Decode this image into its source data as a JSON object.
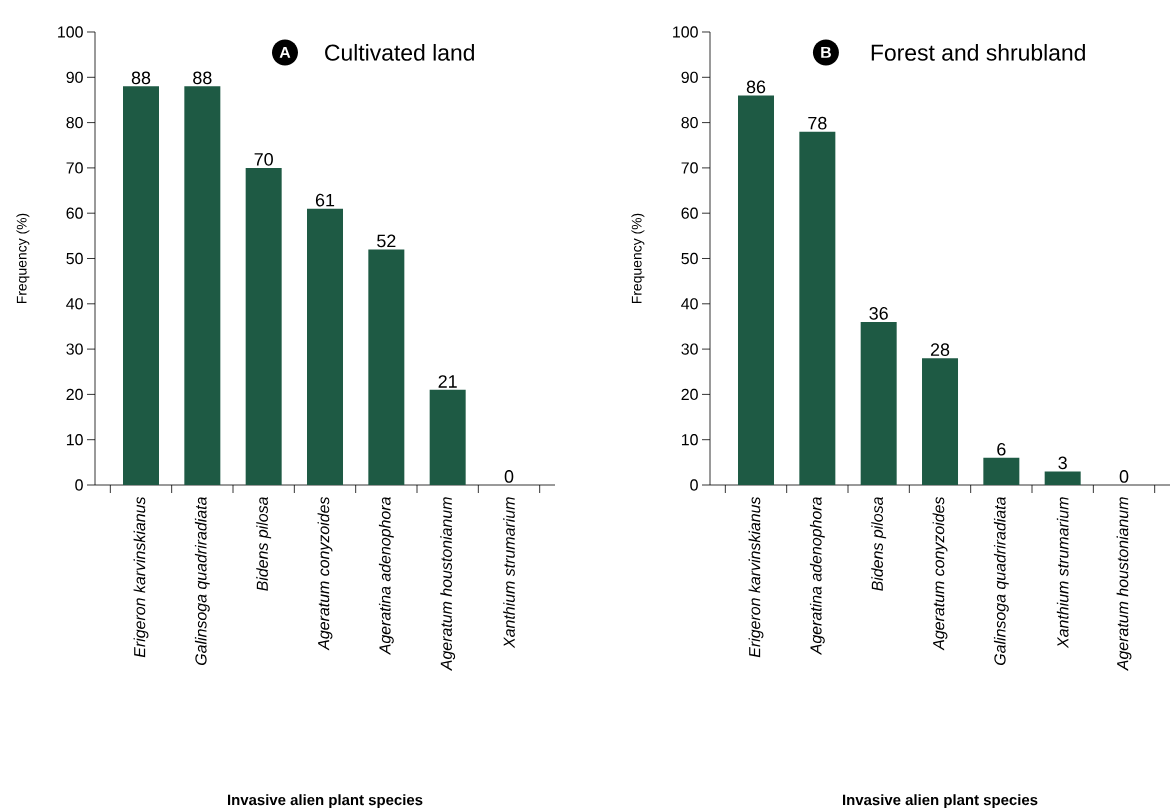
{
  "chart_data": [
    {
      "type": "bar",
      "title": "Cultivated land",
      "annotations": [
        "A"
      ],
      "xlabel": "Invasive alien plant species",
      "ylabel": "Frequency (%)",
      "categories": [
        "Erigeron karvinskianus",
        "Galinsoga quadriradiata",
        "Bidens pilosa",
        "Ageratum conyzoides",
        "Ageratina adenophora",
        "Ageratum houstonianum",
        "Xanthium strumarium"
      ],
      "values": [
        88,
        88,
        70,
        61,
        52,
        21,
        0
      ],
      "color": "#1e5a44",
      "data_labels": true,
      "ylim": [
        0,
        100
      ],
      "yticks": [
        0,
        10,
        20,
        30,
        40,
        50,
        60,
        70,
        80,
        90,
        100
      ]
    },
    {
      "type": "bar",
      "title": "Forest and shrubland",
      "annotations": [
        "B"
      ],
      "xlabel": "Invasive alien plant species",
      "ylabel": "Frequency (%)",
      "categories": [
        "Erigeron karvinskianus",
        "Ageratina adenophora",
        "Bidens pilosa",
        "Ageratum conyzoides",
        "Galinsoga quadriradiata",
        "Xanthium strumarium",
        "Ageratum houstonianum"
      ],
      "values": [
        86,
        78,
        36,
        28,
        6,
        3,
        0
      ],
      "color": "#1e5a44",
      "data_labels": true,
      "ylim": [
        0,
        100
      ],
      "yticks": [
        0,
        10,
        20,
        30,
        40,
        50,
        60,
        70,
        80,
        90,
        100
      ]
    }
  ]
}
